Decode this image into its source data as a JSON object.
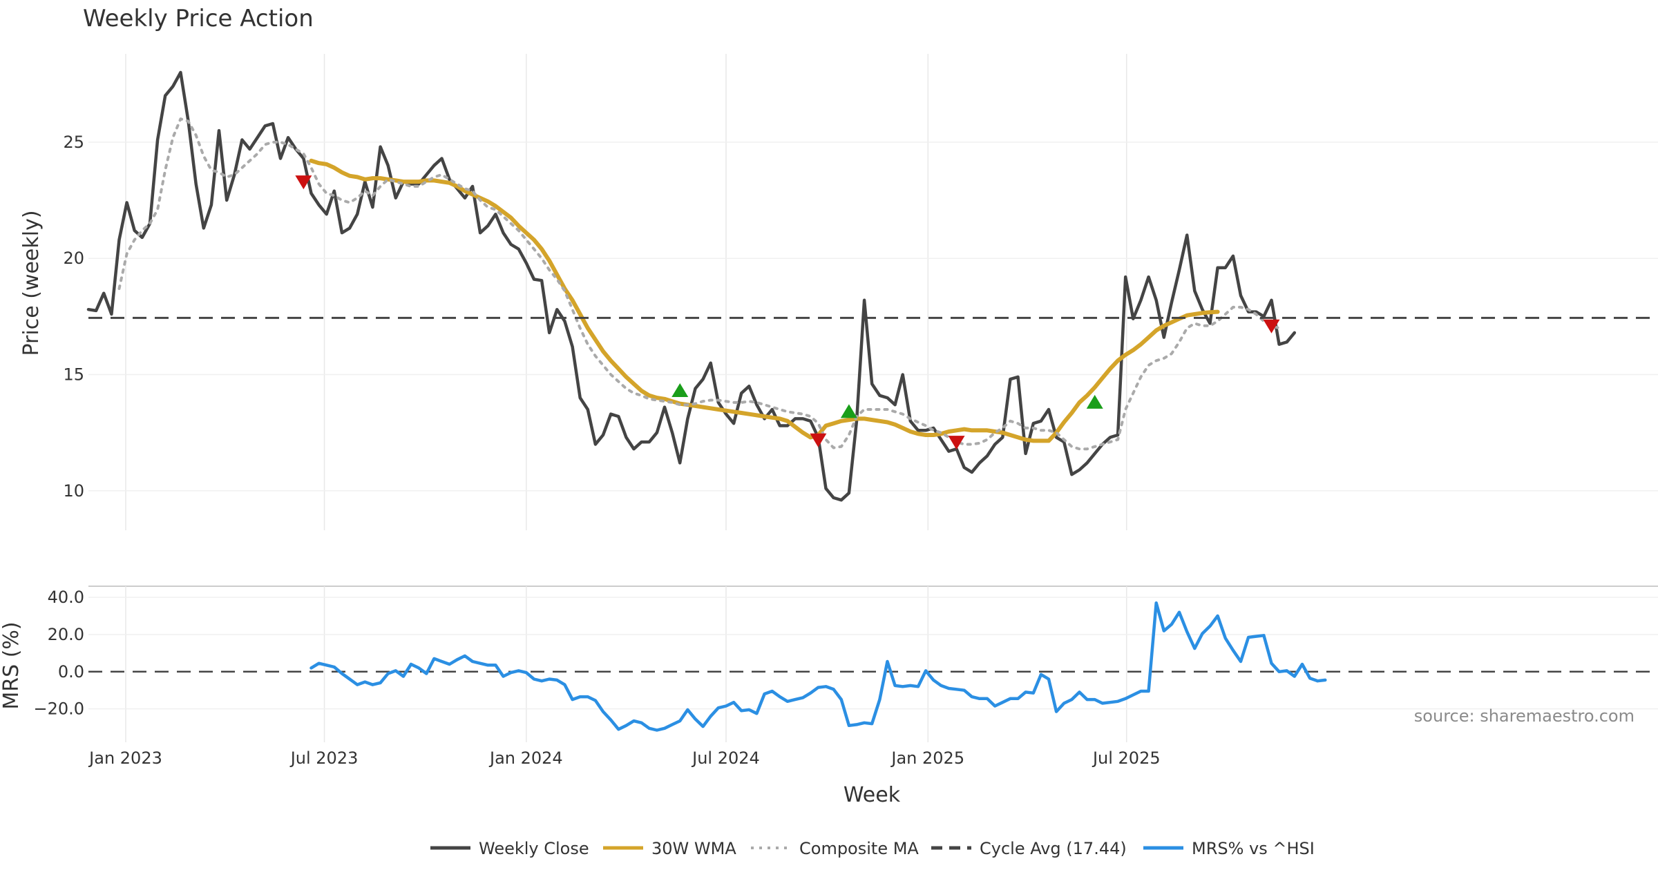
{
  "chart_data": [
    {
      "type": "line",
      "title": "Weekly Price Action",
      "xlabel": "",
      "ylabel": "Price (weekly)",
      "ylim": [
        8.3,
        28.8
      ],
      "yticks": [
        10,
        15,
        20,
        25
      ],
      "grid": true,
      "start_date": "2022-11-28",
      "x_step_days": 7,
      "series": [
        {
          "name": "Weekly Close",
          "color": "#444444",
          "style": "solid",
          "values": [
            17.8,
            17.75,
            18.5,
            17.6,
            20.8,
            22.4,
            21.2,
            20.9,
            21.5,
            25.1,
            27.0,
            27.4,
            28.0,
            25.9,
            23.2,
            21.3,
            22.3,
            25.5,
            22.5,
            23.6,
            25.1,
            24.7,
            25.2,
            25.7,
            25.8,
            24.3,
            25.2,
            24.7,
            24.3,
            22.8,
            22.3,
            21.9,
            22.9,
            21.1,
            21.3,
            21.9,
            23.3,
            22.2,
            24.8,
            24.0,
            22.6,
            23.3,
            23.2,
            23.2,
            23.6,
            24.0,
            24.3,
            23.4,
            23.0,
            22.6,
            23.1,
            21.1,
            21.4,
            21.9,
            21.1,
            20.6,
            20.4,
            19.8,
            19.1,
            19.05,
            16.8,
            17.8,
            17.3,
            16.2,
            14.0,
            13.5,
            12.0,
            12.4,
            13.3,
            13.2,
            12.3,
            11.8,
            12.1,
            12.1,
            12.5,
            13.6,
            12.5,
            11.2,
            13.1,
            14.4,
            14.8,
            15.5,
            13.8,
            13.3,
            12.9,
            14.2,
            14.5,
            13.7,
            13.1,
            13.5,
            12.8,
            12.8,
            13.1,
            13.1,
            13.0,
            12.3,
            10.1,
            9.7,
            9.6,
            9.9,
            13.0,
            18.2,
            14.6,
            14.1,
            14.0,
            13.7,
            15.0,
            13.0,
            12.6,
            12.6,
            12.7,
            12.2,
            11.7,
            11.8,
            11.0,
            10.8,
            11.2,
            11.5,
            12.0,
            12.3,
            14.8,
            14.9,
            11.6,
            12.9,
            13.0,
            13.5,
            12.3,
            12.1,
            10.7,
            10.9,
            11.2,
            11.6,
            12.0,
            12.3,
            12.4,
            19.2,
            17.4,
            18.2,
            19.2,
            18.2,
            16.6,
            18.1,
            19.5,
            21.0,
            18.6,
            17.8,
            17.2,
            19.6,
            19.6,
            20.1,
            18.4,
            17.7,
            17.7,
            17.5,
            18.2,
            16.3,
            16.4,
            16.8
          ]
        },
        {
          "name": "30W WMA",
          "color": "#d4a42a",
          "style": "solid",
          "values": [
            null,
            null,
            null,
            null,
            null,
            null,
            null,
            null,
            null,
            null,
            null,
            null,
            null,
            null,
            null,
            null,
            null,
            null,
            null,
            null,
            null,
            null,
            null,
            null,
            null,
            null,
            null,
            null,
            null,
            24.2,
            24.1,
            24.05,
            23.9,
            23.7,
            23.55,
            23.5,
            23.4,
            23.45,
            23.45,
            23.4,
            23.35,
            23.3,
            23.3,
            23.3,
            23.35,
            23.35,
            23.3,
            23.25,
            23.1,
            22.9,
            22.75,
            22.6,
            22.45,
            22.25,
            22.0,
            21.75,
            21.4,
            21.1,
            20.8,
            20.4,
            19.9,
            19.3,
            18.7,
            18.2,
            17.6,
            17.0,
            16.5,
            16.0,
            15.6,
            15.25,
            14.9,
            14.6,
            14.3,
            14.1,
            14.0,
            13.95,
            13.85,
            13.75,
            13.7,
            13.65,
            13.6,
            13.55,
            13.5,
            13.45,
            13.4,
            13.35,
            13.3,
            13.25,
            13.2,
            13.15,
            13.1,
            13.0,
            12.75,
            12.5,
            12.3,
            12.4,
            12.8,
            12.9,
            13.0,
            13.05,
            13.1,
            13.1,
            13.05,
            13.0,
            12.95,
            12.85,
            12.7,
            12.55,
            12.45,
            12.4,
            12.4,
            12.45,
            12.55,
            12.6,
            12.65,
            12.6,
            12.6,
            12.6,
            12.55,
            12.5,
            12.4,
            12.3,
            12.2,
            12.15,
            12.15,
            12.15,
            12.5,
            12.95,
            13.35,
            13.8,
            14.1,
            14.45,
            14.85,
            15.25,
            15.6,
            15.85,
            16.05,
            16.3,
            16.6,
            16.9,
            17.1,
            17.25,
            17.4,
            17.55,
            17.6,
            17.65,
            17.68,
            17.7
          ]
        },
        {
          "name": "Composite MA",
          "color": "#aaaaaa",
          "style": "dotted",
          "values": [
            null,
            null,
            null,
            null,
            18.7,
            20.2,
            20.8,
            21.2,
            21.5,
            22.1,
            23.8,
            25.2,
            26.0,
            25.9,
            25.3,
            24.4,
            23.8,
            23.7,
            23.5,
            23.6,
            23.9,
            24.2,
            24.5,
            24.9,
            25.0,
            25.0,
            24.9,
            24.7,
            24.5,
            23.9,
            23.2,
            22.8,
            22.7,
            22.5,
            22.4,
            22.6,
            22.9,
            22.7,
            23.1,
            23.4,
            23.3,
            23.2,
            23.1,
            23.1,
            23.3,
            23.5,
            23.6,
            23.4,
            23.2,
            23.0,
            22.9,
            22.5,
            22.2,
            22.1,
            21.8,
            21.5,
            21.2,
            20.8,
            20.4,
            20.0,
            19.5,
            19.1,
            18.6,
            17.8,
            17.0,
            16.3,
            15.8,
            15.4,
            15.0,
            14.7,
            14.4,
            14.2,
            14.1,
            13.95,
            13.9,
            13.85,
            13.8,
            13.7,
            13.7,
            13.75,
            13.85,
            13.9,
            13.9,
            13.85,
            13.8,
            13.8,
            13.85,
            13.8,
            13.7,
            13.6,
            13.5,
            13.4,
            13.35,
            13.3,
            13.2,
            12.9,
            12.2,
            11.85,
            11.9,
            12.4,
            13.2,
            13.5,
            13.5,
            13.5,
            13.5,
            13.4,
            13.3,
            13.1,
            12.95,
            12.8,
            12.6,
            12.5,
            12.3,
            12.1,
            12.0,
            12.0,
            12.05,
            12.2,
            12.5,
            12.7,
            13.0,
            12.9,
            12.7,
            12.7,
            12.6,
            12.6,
            12.5,
            12.2,
            11.9,
            11.8,
            11.8,
            11.9,
            12.0,
            12.1,
            12.2,
            13.5,
            14.2,
            14.9,
            15.4,
            15.6,
            15.7,
            15.9,
            16.4,
            17.0,
            17.2,
            17.1,
            17.1,
            17.3,
            17.6,
            17.9,
            17.9,
            17.8,
            17.6,
            17.3,
            17.1,
            17.0
          ]
        },
        {
          "name": "Cycle Avg (17.44)",
          "color": "#444444",
          "style": "dashed",
          "constant": 17.44
        }
      ],
      "signals": {
        "buy": [
          {
            "date": "2024-05-20",
            "y": 14.3
          },
          {
            "date": "2024-10-21",
            "y": 13.4
          },
          {
            "date": "2025-06-02",
            "y": 13.8
          }
        ],
        "sell": [
          {
            "date": "2023-06-12",
            "y": 23.3
          },
          {
            "date": "2024-09-23",
            "y": 12.2
          },
          {
            "date": "2025-01-27",
            "y": 12.1
          },
          {
            "date": "2025-11-10",
            "y": 17.1
          }
        ]
      }
    },
    {
      "type": "line",
      "xlabel": "Week",
      "ylabel": "MRS (%)",
      "ylim": [
        -38,
        46
      ],
      "yticks": [
        40.0,
        20.0,
        0.0,
        -20.0
      ],
      "ytick_labels": [
        "40.0",
        "20.0",
        "0.0",
        "−20.0"
      ],
      "zero_line": 0,
      "x_tick_labels": [
        "Jan 2023",
        "Jul 2023",
        "Jan 2024",
        "Jul 2024",
        "Jan 2025",
        "Jul 2025"
      ],
      "x_tick_dates": [
        "2023-01-01",
        "2023-07-01",
        "2024-01-01",
        "2024-07-01",
        "2025-01-01",
        "2025-07-01"
      ],
      "series": [
        {
          "name": "MRS% vs ^HSI",
          "color": "#2b8fe3",
          "style": "solid",
          "start_offset": 29,
          "values": [
            2.0,
            4.5,
            3.5,
            2.5,
            -1.0,
            -4.0,
            -7.0,
            -5.5,
            -7.0,
            -6.0,
            -1.0,
            0.5,
            -2.5,
            4.0,
            2.0,
            -1.0,
            7.0,
            5.5,
            4.0,
            6.5,
            8.5,
            5.5,
            4.5,
            3.5,
            3.5,
            -2.5,
            -0.5,
            0.5,
            -0.5,
            -4.0,
            -5.0,
            -4.0,
            -4.5,
            -7.0,
            -15.0,
            -13.5,
            -13.5,
            -15.5,
            -21.5,
            -26.0,
            -31.0,
            -29.0,
            -26.5,
            -27.5,
            -30.5,
            -31.5,
            -30.5,
            -28.5,
            -26.5,
            -20.5,
            -25.5,
            -29.5,
            -24.0,
            -19.5,
            -18.5,
            -16.5,
            -21.0,
            -20.5,
            -22.5,
            -12.0,
            -10.5,
            -13.5,
            -16.0,
            -15.0,
            -14.0,
            -11.5,
            -8.5,
            -8.0,
            -9.5,
            -15.0,
            -29.0,
            -28.5,
            -27.5,
            -28.0,
            -15.0,
            5.5,
            -7.5,
            -8.0,
            -7.5,
            -8.0,
            0.5,
            -4.5,
            -7.5,
            -9.0,
            -9.5,
            -10.0,
            -13.5,
            -14.5,
            -14.5,
            -18.5,
            -16.5,
            -14.5,
            -14.5,
            -11.0,
            -11.5,
            -1.5,
            -4.0,
            -21.5,
            -17.0,
            -15.0,
            -11.0,
            -15.0,
            -15.0,
            -17.0,
            -16.5,
            -16.0,
            -14.5,
            -12.5,
            -10.5,
            -10.5,
            37.0,
            22.0,
            25.5,
            32.0,
            21.5,
            12.5,
            20.5,
            24.5,
            30.0,
            18.0,
            11.5,
            5.5,
            18.5,
            19.0,
            19.5,
            4.5,
            0.0,
            0.5,
            -2.5,
            4.0,
            -3.5,
            -5.0,
            -4.5
          ]
        }
      ]
    }
  ],
  "legend": {
    "position": "bottom-center",
    "items": [
      {
        "label": "Weekly Close",
        "color": "#444444",
        "style": "solid"
      },
      {
        "label": "30W WMA",
        "color": "#d4a42a",
        "style": "solid"
      },
      {
        "label": "Composite MA",
        "color": "#aaaaaa",
        "style": "dotted"
      },
      {
        "label": "Cycle Avg (17.44)",
        "color": "#444444",
        "style": "dashed"
      },
      {
        "label": "MRS% vs ^HSI",
        "color": "#2b8fe3",
        "style": "solid"
      }
    ]
  },
  "source_note": "source: sharemaestro.com",
  "signal_colors": {
    "buy": "#1a9e1a",
    "sell": "#cc1111"
  }
}
